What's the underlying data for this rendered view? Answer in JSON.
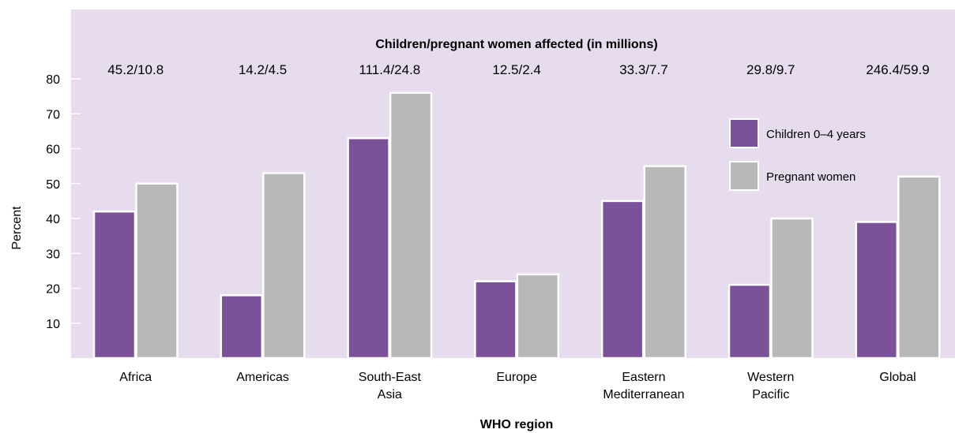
{
  "chart_data": {
    "type": "bar",
    "title": "Children/pregnant women affected (in millions)",
    "xlabel": "WHO region",
    "ylabel": "Percent",
    "ylim": [
      0,
      80
    ],
    "yticks": [
      10,
      20,
      30,
      40,
      50,
      60,
      70,
      80
    ],
    "categories": [
      [
        "Africa"
      ],
      [
        "Americas"
      ],
      [
        "South-East",
        "Asia"
      ],
      [
        "Europe"
      ],
      [
        "Eastern",
        "Mediterranean"
      ],
      [
        "Western",
        "Pacific"
      ],
      [
        "Global"
      ]
    ],
    "affected": [
      "45.2/10.8",
      "14.2/4.5",
      "111.4/24.8",
      "12.5/2.4",
      "33.3/7.7",
      "29.8/9.7",
      "246.4/59.9"
    ],
    "series": [
      {
        "name": "Children 0–4 years",
        "color": "#7b5299",
        "values": [
          42,
          18,
          63,
          22,
          45,
          21,
          39
        ]
      },
      {
        "name": "Pregnant women",
        "color": "#b8b8b8",
        "values": [
          50,
          53,
          76,
          24,
          55,
          40,
          52
        ]
      }
    ],
    "legend_position": "top-right",
    "plot_background": "#e6dced",
    "grid": false
  }
}
